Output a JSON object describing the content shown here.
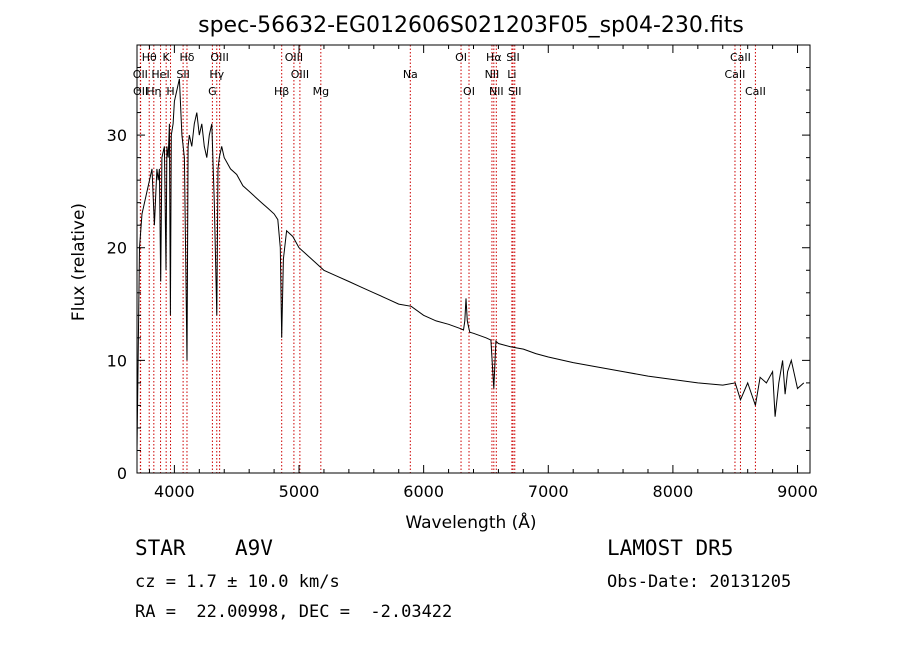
{
  "chart_data": {
    "type": "line",
    "title": "spec-56632-EG012606S021203F05_sp04-230.fits",
    "xlabel": "Wavelength (Å)",
    "ylabel": "Flux (relative)",
    "xlim": [
      3700,
      9100
    ],
    "ylim": [
      0,
      38
    ],
    "xticks": [
      4000,
      5000,
      6000,
      7000,
      8000,
      9000
    ],
    "yticks": [
      0,
      10,
      20,
      30
    ],
    "grid": false,
    "series": [
      {
        "x": [
          3700,
          3720,
          3740,
          3760,
          3780,
          3800,
          3820,
          3840,
          3860,
          3870,
          3880,
          3890,
          3900,
          3920,
          3933,
          3940,
          3950,
          3960,
          3968,
          3975,
          3990,
          4000,
          4020,
          4040,
          4060,
          4080,
          4101,
          4110,
          4120,
          4140,
          4160,
          4180,
          4200,
          4220,
          4240,
          4260,
          4280,
          4300,
          4320,
          4340,
          4350,
          4360,
          4380,
          4400,
          4450,
          4500,
          4550,
          4600,
          4650,
          4700,
          4750,
          4800,
          4830,
          4850,
          4861,
          4875,
          4900,
          4950,
          5000,
          5050,
          5100,
          5150,
          5200,
          5300,
          5400,
          5500,
          5600,
          5700,
          5800,
          5900,
          6000,
          6100,
          6200,
          6300,
          6320,
          6330,
          6340,
          6350,
          6360,
          6370,
          6400,
          6500,
          6540,
          6563,
          6580,
          6600,
          6700,
          6800,
          6900,
          7000,
          7200,
          7400,
          7600,
          7800,
          8000,
          8200,
          8400,
          8500,
          8542,
          8600,
          8662,
          8700,
          8750,
          8800,
          8820,
          8850,
          8880,
          8900,
          8920,
          8950,
          9000,
          9050
        ],
        "y": [
          2,
          20,
          23,
          24,
          25,
          26,
          27,
          22,
          27,
          26,
          27,
          17,
          28,
          29,
          18,
          29,
          28,
          31,
          14,
          30,
          31,
          33,
          34,
          35,
          30,
          28,
          10,
          29,
          30,
          29,
          31,
          32,
          30,
          31,
          29,
          28,
          30,
          31,
          24,
          14,
          27,
          28,
          29,
          28,
          27,
          26.5,
          25.5,
          25,
          24.5,
          24,
          23.5,
          23,
          22.5,
          20,
          12,
          19,
          21.5,
          21,
          20,
          19.5,
          19,
          18.5,
          18,
          17.5,
          17,
          16.5,
          16,
          15.5,
          15,
          14.8,
          14,
          13.5,
          13.2,
          12.8,
          12.7,
          13.5,
          15.5,
          13.5,
          13,
          12.5,
          12.4,
          12,
          11.8,
          7.5,
          11.7,
          11.5,
          11.2,
          11,
          10.6,
          10.3,
          9.8,
          9.4,
          9,
          8.6,
          8.3,
          8,
          7.8,
          8,
          6.5,
          8,
          6,
          8.5,
          8,
          9,
          5,
          8,
          10,
          7,
          9,
          10,
          7.5,
          8
        ]
      }
    ],
    "line_markers": [
      {
        "label": "Hθ",
        "wavelength": 3798,
        "row": 0
      },
      {
        "label": "OII",
        "wavelength": 3727,
        "row": 1
      },
      {
        "label": "OII",
        "wavelength": 3729,
        "row": 2
      },
      {
        "label": "Hη",
        "wavelength": 3835,
        "row": 2
      },
      {
        "label": "HeI",
        "wavelength": 3889,
        "row": 1
      },
      {
        "label": "K",
        "wavelength": 3934,
        "row": 0
      },
      {
        "label": "H",
        "wavelength": 3969,
        "row": 2
      },
      {
        "label": "Hδ",
        "wavelength": 4101,
        "row": 0
      },
      {
        "label": "SII",
        "wavelength": 4070,
        "row": 1
      },
      {
        "label": "OIII",
        "wavelength": 4363,
        "row": 0
      },
      {
        "label": "Hγ",
        "wavelength": 4340,
        "row": 1
      },
      {
        "label": "G",
        "wavelength": 4305,
        "row": 2
      },
      {
        "label": "Hβ",
        "wavelength": 4861,
        "row": 2
      },
      {
        "label": "OIII",
        "wavelength": 4959,
        "row": 0
      },
      {
        "label": "OIII",
        "wavelength": 5007,
        "row": 1
      },
      {
        "label": "Mg",
        "wavelength": 5175,
        "row": 2
      },
      {
        "label": "Na",
        "wavelength": 5893,
        "row": 1
      },
      {
        "label": "OI",
        "wavelength": 6300,
        "row": 0
      },
      {
        "label": "OI",
        "wavelength": 6364,
        "row": 2
      },
      {
        "label": "Hα",
        "wavelength": 6563,
        "row": 0
      },
      {
        "label": "NII",
        "wavelength": 6548,
        "row": 1
      },
      {
        "label": "NII",
        "wavelength": 6583,
        "row": 2
      },
      {
        "label": "SII",
        "wavelength": 6717,
        "row": 0
      },
      {
        "label": "Li",
        "wavelength": 6708,
        "row": 1
      },
      {
        "label": "SII",
        "wavelength": 6731,
        "row": 2
      },
      {
        "label": "CaII",
        "wavelength": 8542,
        "row": 0
      },
      {
        "label": "CaII",
        "wavelength": 8498,
        "row": 1
      },
      {
        "label": "CaII",
        "wavelength": 8662,
        "row": 2
      }
    ]
  },
  "info": {
    "object_type": "STAR",
    "subclass": "A9V",
    "survey": "LAMOST DR5",
    "cz": "cz = 1.7 ± 10.0 km/s",
    "obs_date": "Obs-Date: 20131205",
    "radec": "RA =  22.00998, DEC =  -2.03422"
  },
  "colors": {
    "axis": "#000000",
    "spectrum": "#000000",
    "line_marker": "#cc0000",
    "background": "#ffffff"
  }
}
